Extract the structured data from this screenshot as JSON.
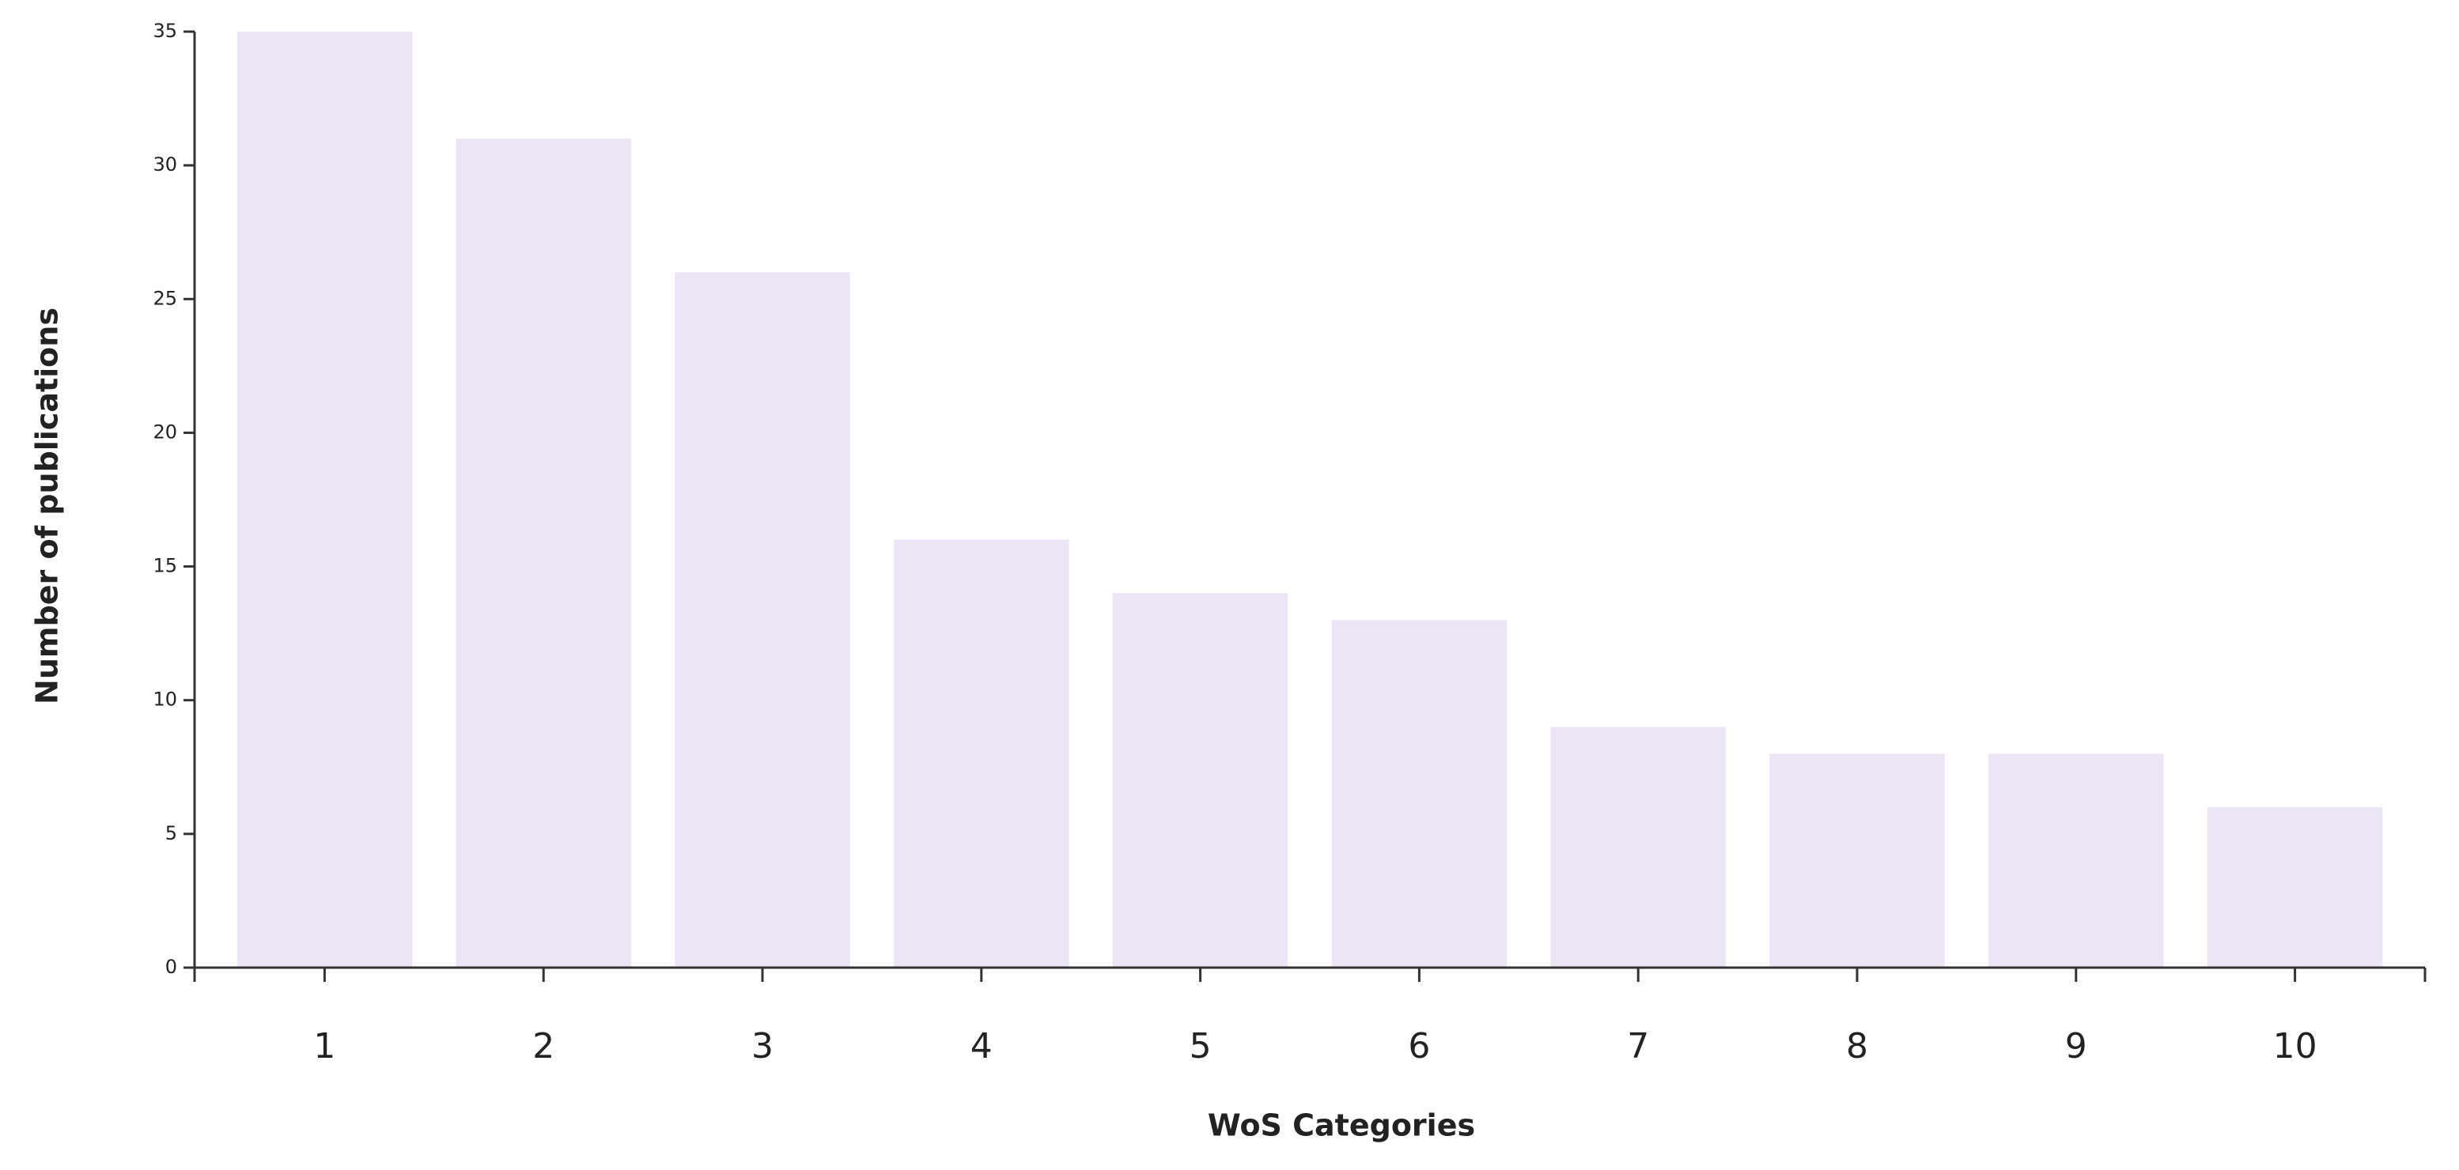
{
  "chart_data": {
    "type": "bar",
    "x_label": "WoS Categories",
    "y_label": "Number of publications",
    "categories": [
      "1",
      "2",
      "3",
      "4",
      "5",
      "6",
      "7",
      "8",
      "9",
      "10"
    ],
    "values": [
      35,
      31,
      26,
      16,
      14,
      13,
      9,
      8,
      8,
      6
    ],
    "color": "#ece5f6",
    "ylim": [
      0,
      35
    ],
    "yticks": [
      0,
      5,
      10,
      15,
      20,
      25,
      30,
      35
    ],
    "grid": false
  }
}
